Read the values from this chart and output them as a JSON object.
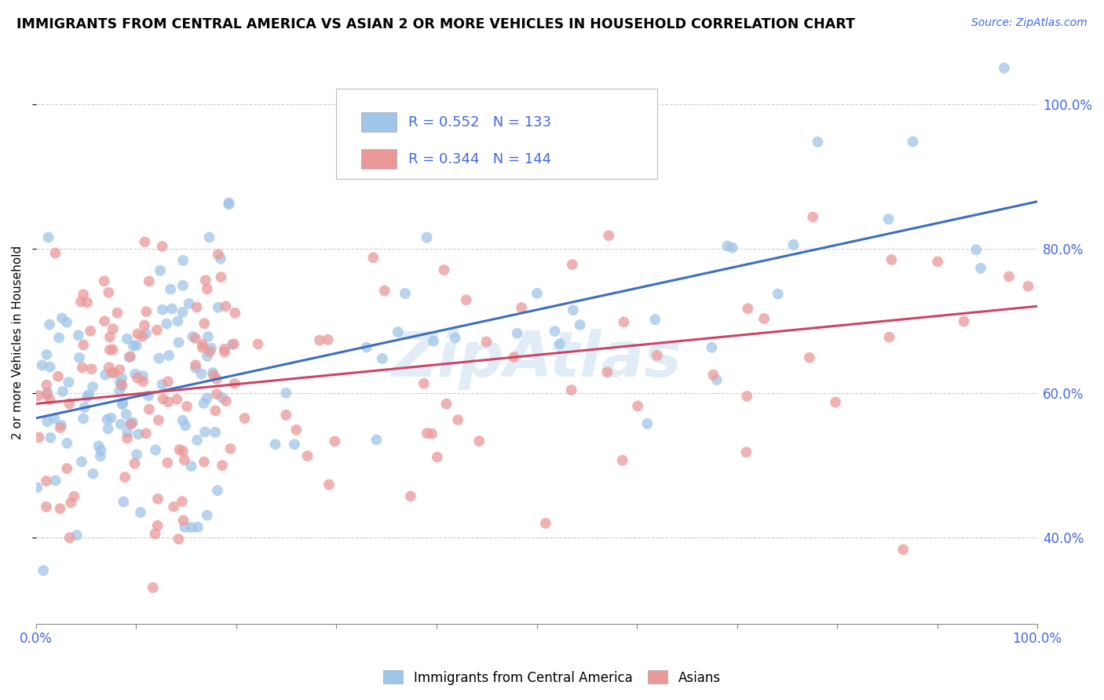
{
  "title": "IMMIGRANTS FROM CENTRAL AMERICA VS ASIAN 2 OR MORE VEHICLES IN HOUSEHOLD CORRELATION CHART",
  "source": "Source: ZipAtlas.com",
  "ylabel": "2 or more Vehicles in Household",
  "legend_label1": "Immigrants from Central America",
  "legend_label2": "Asians",
  "R1": "0.552",
  "N1": "133",
  "R2": "0.344",
  "N2": "144",
  "blue_color": "#9fc5e8",
  "pink_color": "#ea9999",
  "line_blue": "#3d6ebe",
  "line_pink": "#cc4466",
  "text_blue": "#4169e1",
  "watermark_color": "#c8ddf0",
  "grid_color": "#cccccc",
  "ylim_low": 0.28,
  "ylim_high": 1.06,
  "xlim_low": 0.0,
  "xlim_high": 1.0,
  "yticks": [
    0.4,
    0.6,
    0.8,
    1.0
  ],
  "xtick_positions": [
    0.0,
    0.1,
    0.2,
    0.3,
    0.4,
    0.5,
    0.6,
    0.7,
    0.8,
    0.9,
    1.0
  ],
  "blue_line_x0": 0.0,
  "blue_line_y0": 0.565,
  "blue_line_x1": 1.0,
  "blue_line_y1": 0.865,
  "pink_line_x0": 0.0,
  "pink_line_y0": 0.585,
  "pink_line_x1": 1.0,
  "pink_line_y1": 0.72,
  "scatter_marker_size": 100
}
